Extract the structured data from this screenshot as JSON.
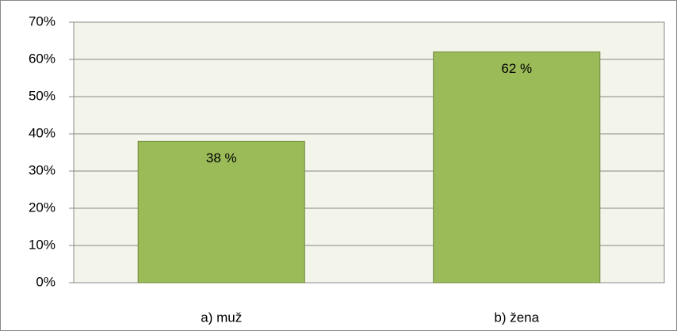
{
  "chart_data": {
    "type": "bar",
    "categories": [
      "a) muž",
      "b) žena"
    ],
    "values": [
      38,
      62
    ],
    "value_labels": [
      "38 %",
      "62 %"
    ],
    "color": "#9bbb59",
    "ylim": [
      0,
      70
    ],
    "yticks": [
      {
        "value": 0,
        "label": "0%"
      },
      {
        "value": 10,
        "label": "10%"
      },
      {
        "value": 20,
        "label": "20%"
      },
      {
        "value": 30,
        "label": "30%"
      },
      {
        "value": 40,
        "label": "40%"
      },
      {
        "value": 50,
        "label": "50%"
      },
      {
        "value": 60,
        "label": "60%"
      },
      {
        "value": 70,
        "label": "70%"
      }
    ],
    "grid": true
  }
}
